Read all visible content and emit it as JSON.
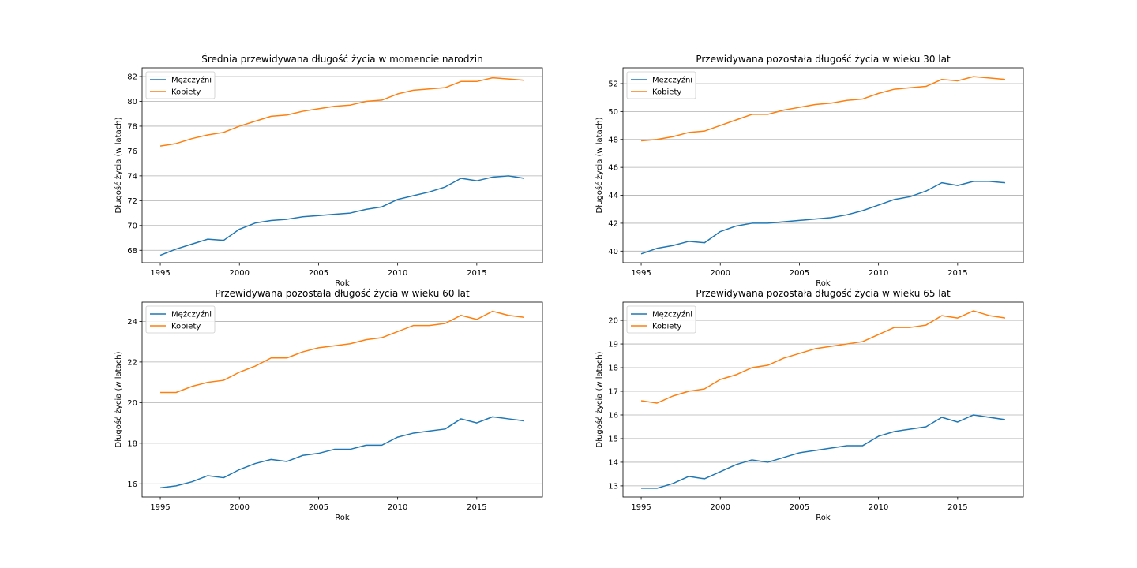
{
  "colors": {
    "men": "#1f77b4",
    "women": "#ff7f0e",
    "grid": "#b0b0b0",
    "axes": "#000000"
  },
  "chart_data": [
    {
      "type": "line",
      "title": "Średnia przewidywana długość życia w momencie narodzin",
      "xlabel": "Rok",
      "ylabel": "Długość życia (w latach)",
      "xlim": [
        1993.85,
        2019.15
      ],
      "ylim": [
        67.0,
        82.7
      ],
      "xticks": [
        1995,
        2000,
        2005,
        2010,
        2015
      ],
      "yticks": [
        68,
        70,
        72,
        74,
        76,
        78,
        80,
        82
      ],
      "grid": "y",
      "legend": "upper-left",
      "x": [
        1995,
        1996,
        1997,
        1998,
        1999,
        2000,
        2001,
        2002,
        2003,
        2004,
        2005,
        2006,
        2007,
        2008,
        2009,
        2010,
        2011,
        2012,
        2013,
        2014,
        2015,
        2016,
        2017,
        2018
      ],
      "series": [
        {
          "name": "Mężczyźni",
          "color": "#1f77b4",
          "values": [
            67.6,
            68.1,
            68.5,
            68.9,
            68.8,
            69.7,
            70.2,
            70.4,
            70.5,
            70.7,
            70.8,
            70.9,
            71.0,
            71.3,
            71.5,
            72.1,
            72.4,
            72.7,
            73.1,
            73.8,
            73.6,
            73.9,
            74.0,
            73.8
          ]
        },
        {
          "name": "Kobiety",
          "color": "#ff7f0e",
          "values": [
            76.4,
            76.6,
            77.0,
            77.3,
            77.5,
            78.0,
            78.4,
            78.8,
            78.9,
            79.2,
            79.4,
            79.6,
            79.7,
            80.0,
            80.1,
            80.6,
            80.9,
            81.0,
            81.1,
            81.6,
            81.6,
            81.9,
            81.8,
            81.7
          ]
        }
      ]
    },
    {
      "type": "line",
      "title": "Przewidywana pozostała długość życia w wieku 30 lat",
      "xlabel": "Rok",
      "ylabel": "Długość życia (w latach)",
      "xlim": [
        1993.85,
        2019.15
      ],
      "ylim": [
        39.17,
        53.13
      ],
      "xticks": [
        1995,
        2000,
        2005,
        2010,
        2015
      ],
      "yticks": [
        40,
        42,
        44,
        46,
        48,
        50,
        52
      ],
      "grid": "y",
      "legend": "upper-left",
      "x": [
        1995,
        1996,
        1997,
        1998,
        1999,
        2000,
        2001,
        2002,
        2003,
        2004,
        2005,
        2006,
        2007,
        2008,
        2009,
        2010,
        2011,
        2012,
        2013,
        2014,
        2015,
        2016,
        2017,
        2018
      ],
      "series": [
        {
          "name": "Mężczyźni",
          "color": "#1f77b4",
          "values": [
            39.8,
            40.2,
            40.4,
            40.7,
            40.6,
            41.4,
            41.8,
            42.0,
            42.0,
            42.1,
            42.2,
            42.3,
            42.4,
            42.6,
            42.9,
            43.3,
            43.7,
            43.9,
            44.3,
            44.9,
            44.7,
            45.0,
            45.0,
            44.9
          ]
        },
        {
          "name": "Kobiety",
          "color": "#ff7f0e",
          "values": [
            47.9,
            48.0,
            48.2,
            48.5,
            48.6,
            49.0,
            49.4,
            49.8,
            49.8,
            50.1,
            50.3,
            50.5,
            50.6,
            50.8,
            50.9,
            51.3,
            51.6,
            51.7,
            51.8,
            52.3,
            52.2,
            52.5,
            52.4,
            52.3
          ]
        }
      ]
    },
    {
      "type": "line",
      "title": "Przewidywana pozostała długość życia w wieku 60 lat",
      "xlabel": "Rok",
      "ylabel": "Długość życia (w latach)",
      "xlim": [
        1993.85,
        2019.15
      ],
      "ylim": [
        15.35,
        24.95
      ],
      "xticks": [
        1995,
        2000,
        2005,
        2010,
        2015
      ],
      "yticks": [
        16,
        18,
        20,
        22,
        24
      ],
      "grid": "y",
      "legend": "upper-left",
      "x": [
        1995,
        1996,
        1997,
        1998,
        1999,
        2000,
        2001,
        2002,
        2003,
        2004,
        2005,
        2006,
        2007,
        2008,
        2009,
        2010,
        2011,
        2012,
        2013,
        2014,
        2015,
        2016,
        2017,
        2018
      ],
      "series": [
        {
          "name": "Mężczyźni",
          "color": "#1f77b4",
          "values": [
            15.8,
            15.9,
            16.1,
            16.4,
            16.3,
            16.7,
            17.0,
            17.2,
            17.1,
            17.4,
            17.5,
            17.7,
            17.7,
            17.9,
            17.9,
            18.3,
            18.5,
            18.6,
            18.7,
            19.2,
            19.0,
            19.3,
            19.2,
            19.1
          ]
        },
        {
          "name": "Kobiety",
          "color": "#ff7f0e",
          "values": [
            20.5,
            20.5,
            20.8,
            21.0,
            21.1,
            21.5,
            21.8,
            22.2,
            22.2,
            22.5,
            22.7,
            22.8,
            22.9,
            23.1,
            23.2,
            23.5,
            23.8,
            23.8,
            23.9,
            24.3,
            24.1,
            24.5,
            24.3,
            24.2
          ]
        }
      ]
    },
    {
      "type": "line",
      "title": "Przewidywana pozostała długość życia w wieku 65 lat",
      "xlabel": "Rok",
      "ylabel": "Długość życia (w latach)",
      "xlim": [
        1993.85,
        2019.15
      ],
      "ylim": [
        12.53,
        20.77
      ],
      "xticks": [
        1995,
        2000,
        2005,
        2010,
        2015
      ],
      "yticks": [
        13,
        14,
        15,
        16,
        17,
        18,
        19,
        20
      ],
      "grid": "y",
      "legend": "upper-left",
      "x": [
        1995,
        1996,
        1997,
        1998,
        1999,
        2000,
        2001,
        2002,
        2003,
        2004,
        2005,
        2006,
        2007,
        2008,
        2009,
        2010,
        2011,
        2012,
        2013,
        2014,
        2015,
        2016,
        2017,
        2018
      ],
      "series": [
        {
          "name": "Mężczyźni",
          "color": "#1f77b4",
          "values": [
            12.9,
            12.9,
            13.1,
            13.4,
            13.3,
            13.6,
            13.9,
            14.1,
            14.0,
            14.2,
            14.4,
            14.5,
            14.6,
            14.7,
            14.7,
            15.1,
            15.3,
            15.4,
            15.5,
            15.9,
            15.7,
            16.0,
            15.9,
            15.8
          ]
        },
        {
          "name": "Kobiety",
          "color": "#ff7f0e",
          "values": [
            16.6,
            16.5,
            16.8,
            17.0,
            17.1,
            17.5,
            17.7,
            18.0,
            18.1,
            18.4,
            18.6,
            18.8,
            18.9,
            19.0,
            19.1,
            19.4,
            19.7,
            19.7,
            19.8,
            20.2,
            20.1,
            20.4,
            20.2,
            20.1
          ]
        }
      ]
    }
  ]
}
